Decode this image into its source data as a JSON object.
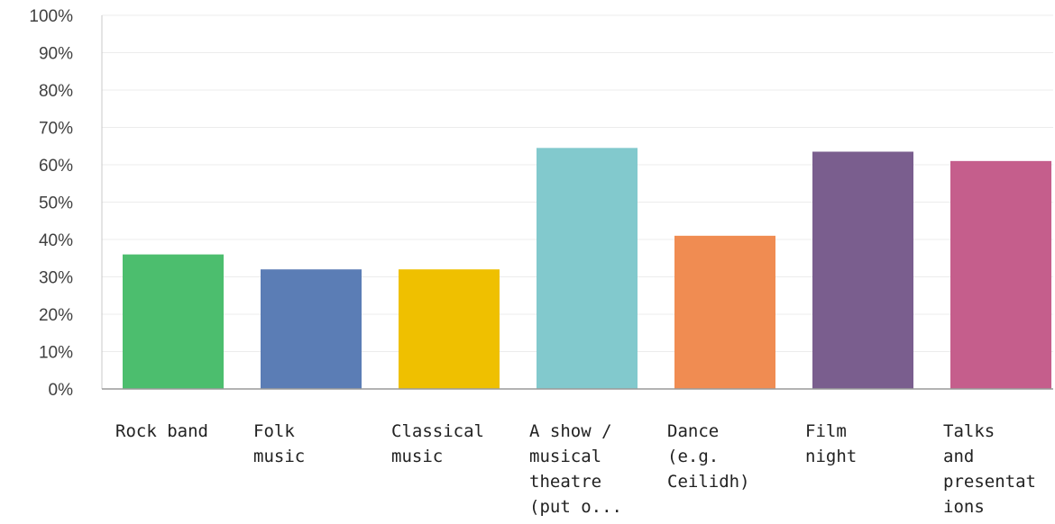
{
  "chart_data": {
    "type": "bar",
    "categories": [
      [
        "Rock band"
      ],
      [
        "Folk",
        "music"
      ],
      [
        "Classical",
        "music"
      ],
      [
        "A show /",
        "musical",
        "theatre",
        "(put o..."
      ],
      [
        "Dance",
        "(e.g.",
        "Ceilidh)"
      ],
      [
        "Film",
        "night"
      ],
      [
        "Talks",
        "and",
        "presentat",
        "ions"
      ]
    ],
    "values": [
      36,
      32,
      32,
      64.5,
      41,
      63.5,
      61
    ],
    "colors": [
      "#4cbe6e",
      "#5b7db5",
      "#efc000",
      "#82c9cd",
      "#f08c52",
      "#7a5e8e",
      "#c55e8c"
    ],
    "y_ticks": [
      "0%",
      "10%",
      "20%",
      "30%",
      "40%",
      "50%",
      "60%",
      "70%",
      "80%",
      "90%",
      "100%"
    ],
    "ylim": [
      0,
      100
    ],
    "grid": true,
    "title": "",
    "xlabel": "",
    "ylabel": ""
  }
}
